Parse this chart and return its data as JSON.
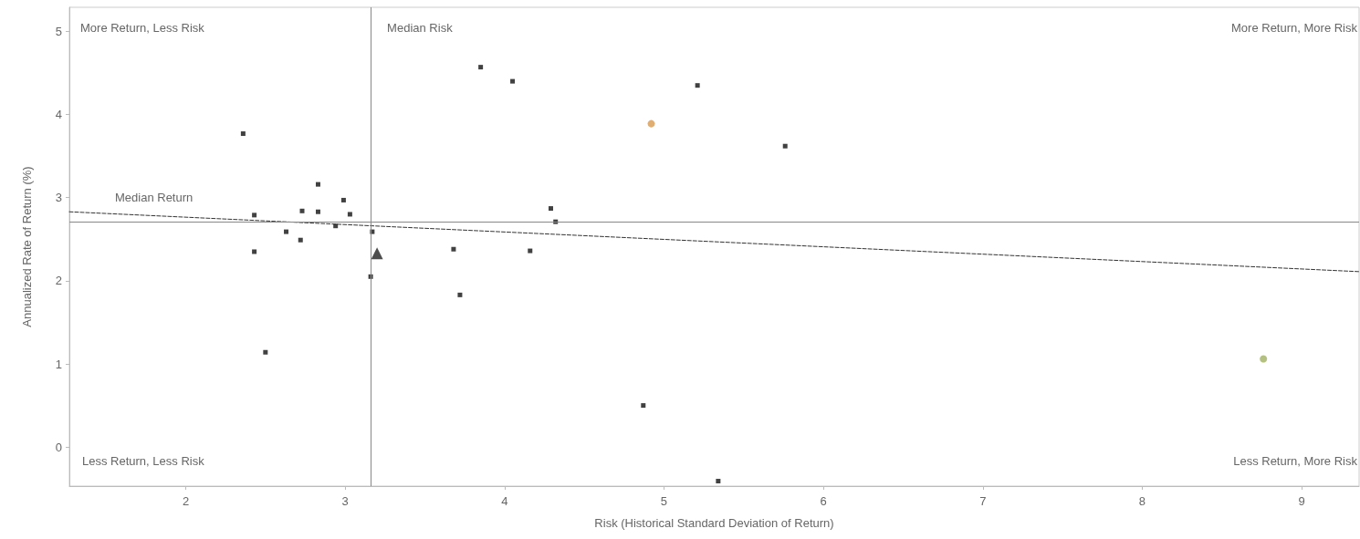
{
  "chart_data": {
    "type": "scatter",
    "xlabel": "Risk (Historical Standard Deviation of Return)",
    "ylabel": "Annualized Rate of Return (%)",
    "xlim": [
      1.27,
      9.36
    ],
    "xticks": [
      2,
      3,
      4,
      5,
      6,
      7,
      8,
      9
    ],
    "ylim": [
      -0.47,
      5.29
    ],
    "yticks": [
      0,
      1,
      2,
      3,
      4,
      5
    ],
    "grid": false,
    "marker": "square",
    "series": [
      {
        "color": "#111111",
        "x": [
          2.36,
          2.43,
          2.43,
          2.5,
          2.63,
          2.72,
          2.73,
          2.83,
          2.83,
          2.94,
          2.99,
          3.03,
          3.17,
          3.16,
          3.68,
          3.72,
          3.85,
          4.05,
          4.16,
          4.29,
          4.32,
          5.21,
          5.76,
          4.87,
          5.34
        ],
        "values": [
          3.77,
          2.79,
          2.35,
          1.14,
          2.59,
          2.49,
          2.84,
          3.16,
          2.83,
          2.66,
          2.97,
          2.8,
          2.59,
          2.05,
          2.38,
          1.83,
          4.57,
          4.4,
          2.36,
          2.87,
          2.71,
          4.35,
          3.62,
          0.5,
          -0.41
        ]
      },
      {
        "color": "#222222",
        "marker": "triangle",
        "x": [
          3.2
        ],
        "values": [
          2.33
        ]
      },
      {
        "color": "#d89850",
        "marker": "circle",
        "x": [
          4.92
        ],
        "values": [
          3.89
        ]
      },
      {
        "color": "#a0b060",
        "marker": "circle",
        "x": [
          8.76
        ],
        "values": [
          1.06
        ]
      },
      {
        "type": "line",
        "color": "#333333",
        "marker": "none",
        "line_style": "dashed",
        "x": [
          1.27,
          9.36
        ],
        "values": [
          2.83,
          2.11
        ]
      }
    ],
    "ref_lines": [
      {
        "axis": "x",
        "value": 3.16,
        "label": "Median Risk",
        "color": "#888888"
      },
      {
        "axis": "y",
        "value": 2.71,
        "label": "Median Return",
        "color": "#888888"
      }
    ],
    "annotations": [
      "More Return, Less Risk",
      "More Return, More Risk",
      "Less Return, Less Risk",
      "Less Return, More Risk"
    ]
  }
}
